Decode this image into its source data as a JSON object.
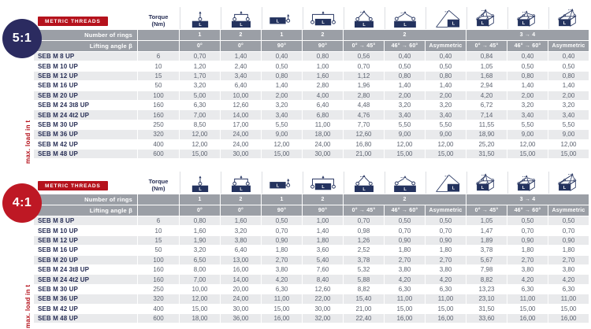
{
  "shared": {
    "metric_threads_label": "METRIC THREADS",
    "max_load_label": "max. load in t",
    "colors": {
      "navy": "#24335f",
      "red": "#b5121c",
      "header_gray": "#9b9fa6",
      "stripe_gray": "#e9eaec",
      "label_navy": "#272e55",
      "value_gray": "#5d6370",
      "circle_navy": "#2b2b60",
      "circle_red": "#be1824"
    }
  },
  "columns": {
    "torque_header": "Torque\n(Nm)",
    "rings_row_label": "Number of rings",
    "angle_row_label": "Lifting angle β",
    "ring_groups": [
      {
        "label": "1",
        "span": 1
      },
      {
        "label": "2",
        "span": 1
      },
      {
        "label": "1",
        "span": 1
      },
      {
        "label": "2",
        "span": 1
      },
      {
        "label": "2",
        "span": 3
      },
      {
        "label": "3 → 4",
        "span": 3
      }
    ],
    "angles": [
      "0°",
      "0°",
      "90°",
      "90°",
      "0° → 45°",
      "46° → 60°",
      "Asymmetric",
      "0° → 45°",
      "46° → 60°",
      "Asymmetric"
    ],
    "icons": [
      "hoist-vertical-1-ring-icon",
      "hoist-vertical-2-ring-icon",
      "hoist-side-90deg-1-ring-icon",
      "hoist-side-90deg-2-ring-icon",
      "sling-0-45deg-2-ring-icon",
      "sling-46-60deg-2-ring-icon",
      "sling-asymmetric-2-ring-icon",
      "sling-0-45deg-3-4-ring-icon",
      "sling-46-60deg-3-4-ring-icon",
      "sling-asymmetric-3-4-ring-icon"
    ]
  },
  "tables": [
    {
      "ratio": "5:1",
      "badge_color": "#2b2b60",
      "rows": [
        {
          "label": "SEB M 8 UP",
          "torque": "6",
          "values": [
            "0,70",
            "1,40",
            "0,40",
            "0,80",
            "0,56",
            "0,40",
            "0,40",
            "0,84",
            "0,40",
            "0,40"
          ]
        },
        {
          "label": "SEB M 10 UP",
          "torque": "10",
          "values": [
            "1,20",
            "2,40",
            "0,50",
            "1,00",
            "0,70",
            "0,50",
            "0,50",
            "1,05",
            "0,50",
            "0,50"
          ]
        },
        {
          "label": "SEB M 12 UP",
          "torque": "15",
          "values": [
            "1,70",
            "3,40",
            "0,80",
            "1,60",
            "1,12",
            "0,80",
            "0,80",
            "1,68",
            "0,80",
            "0,80"
          ]
        },
        {
          "label": "SEB M 16 UP",
          "torque": "50",
          "values": [
            "3,20",
            "6,40",
            "1,40",
            "2,80",
            "1,96",
            "1,40",
            "1,40",
            "2,94",
            "1,40",
            "1,40"
          ]
        },
        {
          "label": "SEB M 20 UP",
          "torque": "100",
          "values": [
            "5,00",
            "10,00",
            "2,00",
            "4,00",
            "2,80",
            "2,00",
            "2,00",
            "4,20",
            "2,00",
            "2,00"
          ]
        },
        {
          "label": "SEB M 24 3t8 UP",
          "torque": "160",
          "values": [
            "6,30",
            "12,60",
            "3,20",
            "6,40",
            "4,48",
            "3,20",
            "3,20",
            "6,72",
            "3,20",
            "3,20"
          ]
        },
        {
          "label": "SEB M 24 4t2 UP",
          "torque": "160",
          "values": [
            "7,00",
            "14,00",
            "3,40",
            "6,80",
            "4,76",
            "3,40",
            "3,40",
            "7,14",
            "3,40",
            "3,40"
          ]
        },
        {
          "label": "SEB M 30 UP",
          "torque": "250",
          "values": [
            "8,50",
            "17,00",
            "5,50",
            "11,00",
            "7,70",
            "5,50",
            "5,50",
            "11,55",
            "5,50",
            "5,50"
          ]
        },
        {
          "label": "SEB M 36 UP",
          "torque": "320",
          "values": [
            "12,00",
            "24,00",
            "9,00",
            "18,00",
            "12,60",
            "9,00",
            "9,00",
            "18,90",
            "9,00",
            "9,00"
          ]
        },
        {
          "label": "SEB M 42 UP",
          "torque": "400",
          "values": [
            "12,00",
            "24,00",
            "12,00",
            "24,00",
            "16,80",
            "12,00",
            "12,00",
            "25,20",
            "12,00",
            "12,00"
          ]
        },
        {
          "label": "SEB M 48 UP",
          "torque": "600",
          "values": [
            "15,00",
            "30,00",
            "15,00",
            "30,00",
            "21,00",
            "15,00",
            "15,00",
            "31,50",
            "15,00",
            "15,00"
          ]
        }
      ]
    },
    {
      "ratio": "4:1",
      "badge_color": "#be1824",
      "rows": [
        {
          "label": "SEB M 8 UP",
          "torque": "6",
          "values": [
            "0,80",
            "1,60",
            "0,50",
            "1,00",
            "0,70",
            "0,50",
            "0,50",
            "1,05",
            "0,50",
            "0,50"
          ]
        },
        {
          "label": "SEB M 10 UP",
          "torque": "10",
          "values": [
            "1,60",
            "3,20",
            "0,70",
            "1,40",
            "0,98",
            "0,70",
            "0,70",
            "1,47",
            "0,70",
            "0,70"
          ]
        },
        {
          "label": "SEB M 12 UP",
          "torque": "15",
          "values": [
            "1,90",
            "3,80",
            "0,90",
            "1,80",
            "1,26",
            "0,90",
            "0,90",
            "1,89",
            "0,90",
            "0,90"
          ]
        },
        {
          "label": "SEB M 16 UP",
          "torque": "50",
          "values": [
            "3,20",
            "6,40",
            "1,80",
            "3,60",
            "2,52",
            "1,80",
            "1,80",
            "3,78",
            "1,80",
            "1,80"
          ]
        },
        {
          "label": "SEB M 20 UP",
          "torque": "100",
          "values": [
            "6,50",
            "13,00",
            "2,70",
            "5,40",
            "3,78",
            "2,70",
            "2,70",
            "5,67",
            "2,70",
            "2,70"
          ]
        },
        {
          "label": "SEB M 24 3t8 UP",
          "torque": "160",
          "values": [
            "8,00",
            "16,00",
            "3,80",
            "7,60",
            "5,32",
            "3,80",
            "3,80",
            "7,98",
            "3,80",
            "3,80"
          ]
        },
        {
          "label": "SEB M 24 4t2 UP",
          "torque": "160",
          "values": [
            "7,00",
            "14,00",
            "4,20",
            "8,40",
            "5,88",
            "4,20",
            "4,20",
            "8,82",
            "4,20",
            "4,20"
          ]
        },
        {
          "label": "SEB M 30 UP",
          "torque": "250",
          "values": [
            "10,00",
            "20,00",
            "6,30",
            "12,60",
            "8,82",
            "6,30",
            "6,30",
            "13,23",
            "6,30",
            "6,30"
          ]
        },
        {
          "label": "SEB M 36 UP",
          "torque": "320",
          "values": [
            "12,00",
            "24,00",
            "11,00",
            "22,00",
            "15,40",
            "11,00",
            "11,00",
            "23,10",
            "11,00",
            "11,00"
          ]
        },
        {
          "label": "SEB M 42 UP",
          "torque": "400",
          "values": [
            "15,00",
            "30,00",
            "15,00",
            "30,00",
            "21,00",
            "15,00",
            "15,00",
            "31,50",
            "15,00",
            "15,00"
          ]
        },
        {
          "label": "SEB M 48 UP",
          "torque": "600",
          "values": [
            "18,00",
            "36,00",
            "16,00",
            "32,00",
            "22,40",
            "16,00",
            "16,00",
            "33,60",
            "16,00",
            "16,00"
          ]
        }
      ]
    }
  ]
}
